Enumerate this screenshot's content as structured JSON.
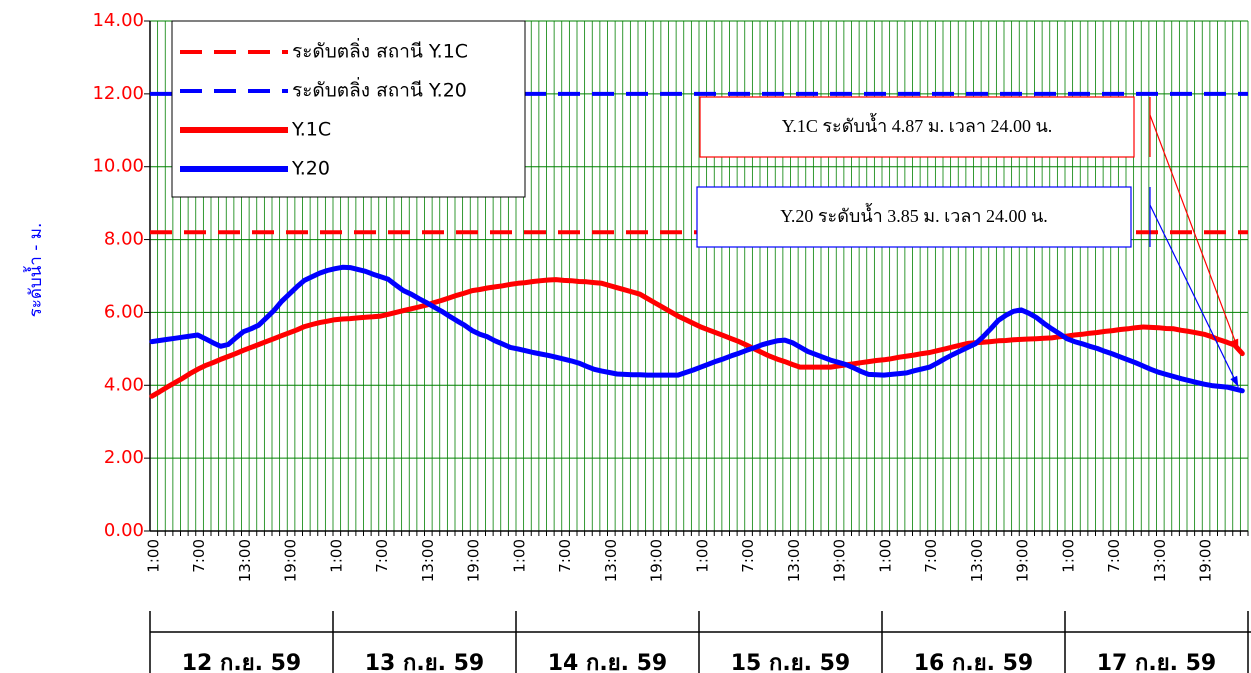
{
  "chart_data": {
    "type": "line",
    "y_axis_label": "ระดับน้ำ - ม.",
    "categories": [
      "1:00",
      null,
      null,
      null,
      null,
      null,
      "7:00",
      null,
      null,
      null,
      null,
      null,
      "13:00",
      null,
      null,
      null,
      null,
      null,
      "19:00",
      null,
      null,
      null,
      null,
      null,
      "1:00",
      null,
      null,
      null,
      null,
      null,
      "7:00",
      null,
      null,
      null,
      null,
      null,
      "13:00",
      null,
      null,
      null,
      null,
      null,
      "19:00",
      null,
      null,
      null,
      null,
      null,
      "1:00",
      null,
      null,
      null,
      null,
      null,
      "7:00",
      null,
      null,
      null,
      null,
      null,
      "13:00",
      null,
      null,
      null,
      null,
      null,
      "19:00",
      null,
      null,
      null,
      null,
      null,
      "1:00",
      null,
      null,
      null,
      null,
      null,
      "7:00",
      null,
      null,
      null,
      null,
      null,
      "13:00",
      null,
      null,
      null,
      null,
      null,
      "19:00",
      null,
      null,
      null,
      null,
      null,
      "1:00",
      null,
      null,
      null,
      null,
      null,
      "7:00",
      null,
      null,
      null,
      null,
      null,
      "13:00",
      null,
      null,
      null,
      null,
      null,
      "19:00",
      null,
      null,
      null,
      null,
      null,
      "1:00",
      null,
      null,
      null,
      null,
      null,
      "7:00",
      null,
      null,
      null,
      null,
      null,
      "13:00",
      null,
      null,
      null,
      null,
      null,
      "19:00",
      null,
      null,
      null,
      null,
      null
    ],
    "days": [
      "12 ก.ย. 59",
      "13 ก.ย. 59",
      "14 ก.ย. 59",
      "15 ก.ย. 59",
      "16 ก.ย. 59",
      "17 ก.ย. 59"
    ],
    "reference_lines": [
      {
        "name": "ระดับตลิ่ง สถานี Y.1C",
        "value": 8.2,
        "color": "#ff0000"
      },
      {
        "name": "ระดับตลิ่ง สถานี Y.20",
        "value": 12.0,
        "color": "#0000ff"
      }
    ],
    "series": [
      {
        "name": "Y.1C",
        "color": "#ff0000",
        "values": [
          3.7,
          3.82,
          3.95,
          4.07,
          4.19,
          4.32,
          4.44,
          4.54,
          4.62,
          4.71,
          4.79,
          4.87,
          4.96,
          5.04,
          5.12,
          5.2,
          5.28,
          5.36,
          5.44,
          5.52,
          5.61,
          5.67,
          5.72,
          5.76,
          5.8,
          5.82,
          5.83,
          5.85,
          5.87,
          5.88,
          5.9,
          5.95,
          6.0,
          6.05,
          6.1,
          6.15,
          6.2,
          6.27,
          6.33,
          6.4,
          6.47,
          6.53,
          6.6,
          6.63,
          6.67,
          6.7,
          6.73,
          6.77,
          6.8,
          6.82,
          6.85,
          6.87,
          6.89,
          6.9,
          6.88,
          6.87,
          6.85,
          6.84,
          6.82,
          6.8,
          6.74,
          6.68,
          6.62,
          6.56,
          6.5,
          6.38,
          6.26,
          6.14,
          6.02,
          5.9,
          5.8,
          5.7,
          5.6,
          5.52,
          5.44,
          5.36,
          5.28,
          5.2,
          5.1,
          5.0,
          4.9,
          4.8,
          4.72,
          4.65,
          4.57,
          4.5,
          4.5,
          4.5,
          4.5,
          4.5,
          4.53,
          4.56,
          4.59,
          4.62,
          4.65,
          4.68,
          4.7,
          4.73,
          4.77,
          4.8,
          4.83,
          4.87,
          4.9,
          4.95,
          5.0,
          5.05,
          5.1,
          5.15,
          5.17,
          5.18,
          5.2,
          5.22,
          5.23,
          5.25,
          5.26,
          5.27,
          5.28,
          5.29,
          5.3,
          5.33,
          5.35,
          5.38,
          5.4,
          5.43,
          5.45,
          5.48,
          5.5,
          5.53,
          5.55,
          5.58,
          5.6,
          5.59,
          5.58,
          5.56,
          5.55,
          5.51,
          5.48,
          5.44,
          5.4,
          5.33,
          5.25,
          5.18,
          5.1,
          4.87
        ]
      },
      {
        "name": "Y.20",
        "color": "#0000ff",
        "values": [
          5.2,
          5.23,
          5.26,
          5.29,
          5.32,
          5.35,
          5.38,
          5.28,
          5.17,
          5.07,
          5.12,
          5.3,
          5.47,
          5.55,
          5.65,
          5.85,
          6.05,
          6.3,
          6.5,
          6.7,
          6.88,
          6.98,
          7.08,
          7.15,
          7.2,
          7.24,
          7.23,
          7.18,
          7.13,
          7.05,
          6.98,
          6.91,
          6.75,
          6.6,
          6.5,
          6.38,
          6.27,
          6.15,
          6.03,
          5.9,
          5.77,
          5.65,
          5.5,
          5.4,
          5.33,
          5.22,
          5.13,
          5.04,
          5.0,
          4.95,
          4.9,
          4.86,
          4.82,
          4.77,
          4.72,
          4.67,
          4.61,
          4.52,
          4.44,
          4.39,
          4.35,
          4.31,
          4.3,
          4.29,
          4.29,
          4.28,
          4.28,
          4.28,
          4.28,
          4.28,
          4.35,
          4.42,
          4.5,
          4.58,
          4.66,
          4.73,
          4.81,
          4.88,
          4.96,
          5.03,
          5.11,
          5.17,
          5.22,
          5.24,
          5.17,
          5.05,
          4.93,
          4.85,
          4.77,
          4.69,
          4.63,
          4.57,
          4.48,
          4.38,
          4.3,
          4.29,
          4.28,
          4.3,
          4.32,
          4.34,
          4.4,
          4.45,
          4.5,
          4.61,
          4.73,
          4.84,
          4.94,
          5.04,
          5.14,
          5.33,
          5.55,
          5.78,
          5.92,
          6.03,
          6.07,
          5.98,
          5.86,
          5.7,
          5.55,
          5.42,
          5.28,
          5.2,
          5.14,
          5.07,
          5.01,
          4.93,
          4.86,
          4.78,
          4.7,
          4.62,
          4.53,
          4.44,
          4.36,
          4.3,
          4.24,
          4.18,
          4.13,
          4.08,
          4.03,
          3.99,
          3.97,
          3.95,
          3.9,
          3.85
        ]
      }
    ],
    "annotations": [
      {
        "text": "Y.1C ระดับน้ำ 4.87 ม. เวลา 24.00 น.",
        "color": "#ff0000"
      },
      {
        "text": "Y.20 ระดับน้ำ 3.85 ม. เวลา 24.00 น.",
        "color": "#0000ff"
      }
    ],
    "ylim": [
      0,
      14
    ],
    "yticks": [
      {
        "value": 0,
        "label": "0.00"
      },
      {
        "value": 2,
        "label": "2.00"
      },
      {
        "value": 4,
        "label": "4.00"
      },
      {
        "value": 6,
        "label": "6.00"
      },
      {
        "value": 8,
        "label": "8.00"
      },
      {
        "value": 10,
        "label": "10.00"
      },
      {
        "value": 12,
        "label": "12.00"
      },
      {
        "value": 14,
        "label": "14.00"
      }
    ],
    "grid": true,
    "grid_color": "#008000",
    "tick_label_color": "#ff0000",
    "axis_label_color": "#0000ff",
    "legend": "upper left"
  }
}
